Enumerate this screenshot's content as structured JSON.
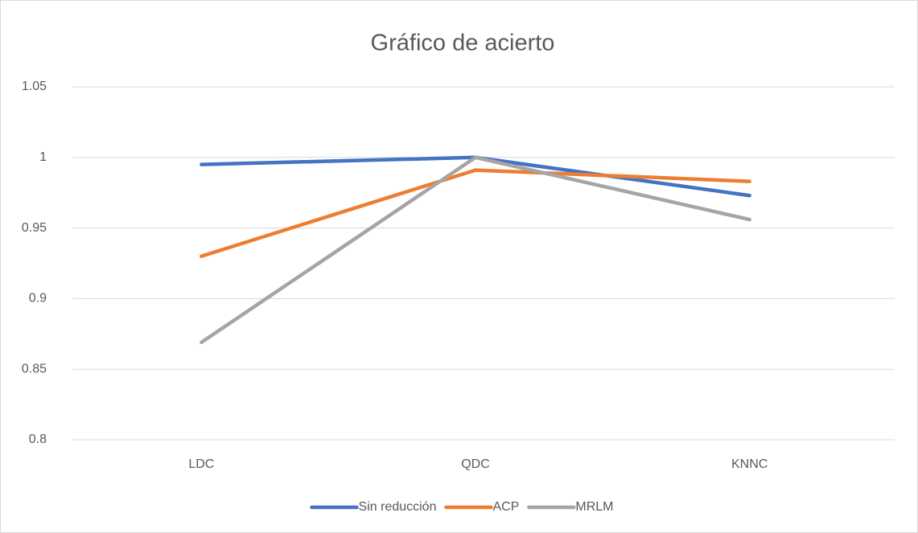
{
  "chart_data": {
    "type": "line",
    "title": "Gráfico de acierto",
    "categories": [
      "LDC",
      "QDC",
      "KNNC"
    ],
    "series": [
      {
        "name": "Sin reducción",
        "color": "#4472c4",
        "values": [
          0.995,
          1.0,
          0.973
        ]
      },
      {
        "name": "ACP",
        "color": "#ed7d31",
        "values": [
          0.93,
          0.991,
          0.983
        ]
      },
      {
        "name": "MRLM",
        "color": "#a5a5a5",
        "values": [
          0.869,
          1.0,
          0.956
        ]
      }
    ],
    "ylim": [
      0.8,
      1.05
    ],
    "yticks": [
      0.8,
      0.85,
      0.9,
      0.95,
      1,
      1.05
    ],
    "grid": true,
    "legend": "bottom"
  }
}
